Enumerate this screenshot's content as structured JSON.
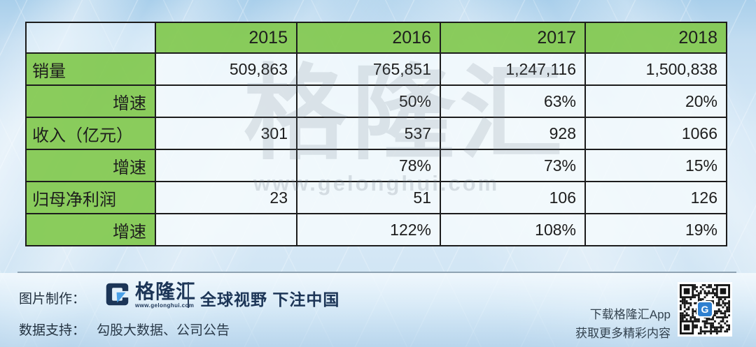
{
  "table": {
    "year_headers": [
      "2015",
      "2016",
      "2017",
      "2018"
    ],
    "rows": [
      {
        "label": "销量",
        "values": [
          "509,863",
          "765,851",
          "1,247,116",
          "1,500,838"
        ]
      },
      {
        "label": "增速",
        "values": [
          "",
          "50%",
          "63%",
          "20%"
        ]
      },
      {
        "label": "收入（亿元）",
        "values": [
          "301",
          "537",
          "928",
          "1066"
        ]
      },
      {
        "label": "增速",
        "values": [
          "",
          "78%",
          "73%",
          "15%"
        ]
      },
      {
        "label": "归母净利润",
        "values": [
          "23",
          "51",
          "106",
          "126"
        ]
      },
      {
        "label": "增速",
        "values": [
          "",
          "122%",
          "108%",
          "19%"
        ]
      }
    ]
  },
  "chart_data": {
    "type": "table",
    "categories": [
      "2015",
      "2016",
      "2017",
      "2018"
    ],
    "series": [
      {
        "name": "销量",
        "values": [
          509863,
          765851,
          1247116,
          1500838
        ]
      },
      {
        "name": "销量增速",
        "values": [
          null,
          "50%",
          "63%",
          "20%"
        ]
      },
      {
        "name": "收入（亿元）",
        "values": [
          301,
          537,
          928,
          1066
        ]
      },
      {
        "name": "收入增速",
        "values": [
          null,
          "78%",
          "73%",
          "15%"
        ]
      },
      {
        "name": "归母净利润",
        "values": [
          23,
          51,
          106,
          126
        ]
      },
      {
        "name": "归母净利润增速",
        "values": [
          null,
          "122%",
          "108%",
          "19%"
        ]
      }
    ]
  },
  "watermark": {
    "brand": "格隆汇",
    "url": "www.gelonghui.com"
  },
  "footer": {
    "credit_label": "图片制作：",
    "logo_name": "格隆汇",
    "logo_url": "www.gelonghui.com",
    "slogan": "全球视野 下注中国",
    "data_label": "数据支持：",
    "data_sources": "勾股大数据、公司公告",
    "app_line1": "下载格隆汇App",
    "app_line2": "获取更多精彩内容"
  },
  "colors": {
    "cell_green": "#82C94E",
    "cell_white": "#EFF6FC",
    "border_black": "#1C1C1C",
    "brand_navy": "#1C3557",
    "qr_logo_blue": "#2F80D0",
    "background_blue": "#CDE3F3"
  }
}
